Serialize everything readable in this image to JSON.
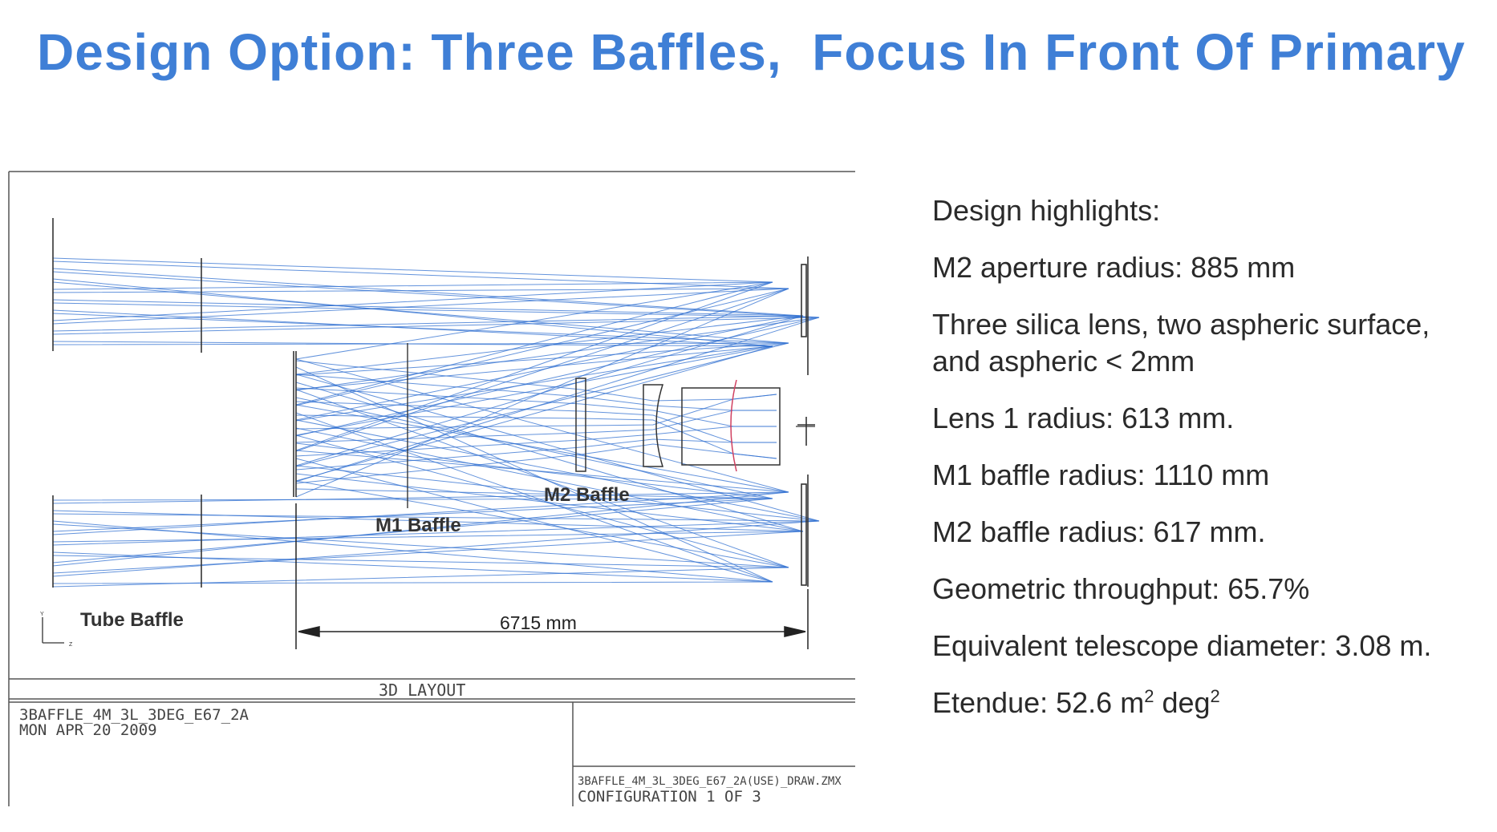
{
  "slide": {
    "title": "Design Option: Three Baffles,  Focus In Front Of Primary"
  },
  "drawing": {
    "labels": {
      "tube_baffle": "Tube Baffle",
      "m1_baffle": "M1 Baffle",
      "m2_baffle": "M2 Baffle",
      "dimension": "6715 mm",
      "axis_y": "Y",
      "axis_z": "Z"
    },
    "title_block": {
      "view_name": "3D LAYOUT",
      "lens_name": "3BAFFLE_4M_3L_3DEG_E67_2A",
      "date": "MON APR 20 2009",
      "file_name": "3BAFFLE_4M_3L_3DEG_E67_2A(USE)_DRAW.ZMX",
      "configuration": "CONFIGURATION  1  OF  3"
    }
  },
  "highlights": {
    "heading": "Design highlights:",
    "m2_aperture": "M2 aperture radius:  885 mm",
    "lenses_line1": "Three silica lens, two aspheric surface,",
    "lenses_line2": "and aspheric < 2mm",
    "lens1_radius": "Lens 1 radius: 613 mm.",
    "m1_baffle": "M1 baffle radius: 1110 mm",
    "m2_baffle": "M2 baffle radius: 617 mm.",
    "throughput": "Geometric throughput: 65.7%",
    "equiv_diameter": "Equivalent telescope diameter: 3.08 m.",
    "etendue_prefix": "Etendue: 52.6  m",
    "etendue_exp1": "2",
    "etendue_unit": " deg",
    "etendue_exp2": "2"
  },
  "colors": {
    "title": "#3f7fd6",
    "ray": "#2f6fd0",
    "frame": "#555555",
    "surface_red": "#d04060"
  }
}
